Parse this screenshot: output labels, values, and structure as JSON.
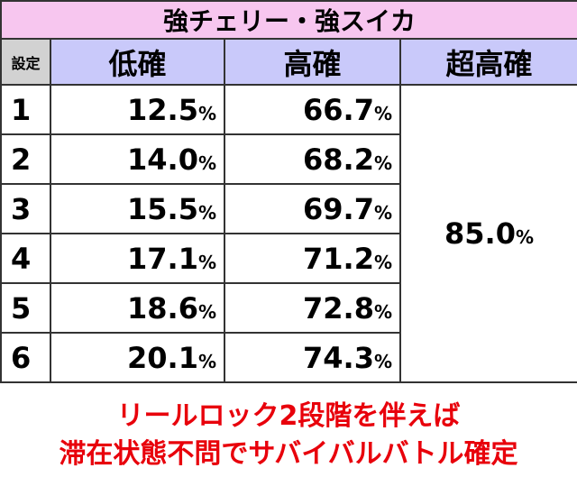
{
  "title": "強チェリー・強スイカ",
  "table": {
    "header": [
      "設定",
      "低確",
      "高確",
      "超高確"
    ],
    "rows": [
      [
        "1",
        {
          "value": "12.5",
          "unit": "%"
        },
        {
          "value": "66.7",
          "unit": "%"
        }
      ],
      [
        "2",
        {
          "value": "14.0",
          "unit": "%"
        },
        {
          "value": "68.2",
          "unit": "%"
        }
      ],
      [
        "3",
        {
          "value": "15.5",
          "unit": "%"
        },
        {
          "value": "69.7",
          "unit": "%"
        }
      ],
      [
        "4",
        {
          "value": "17.1",
          "unit": "%"
        },
        {
          "value": "71.2",
          "unit": "%"
        }
      ],
      [
        "5",
        {
          "value": "18.6",
          "unit": "%"
        },
        {
          "value": "72.8",
          "unit": "%"
        }
      ],
      [
        "6",
        {
          "value": "20.1",
          "unit": "%"
        },
        {
          "value": "74.3",
          "unit": "%"
        }
      ]
    ],
    "super": {
      "value": "85.0",
      "unit": "%"
    }
  },
  "footer": [
    "リールロック2段階を伴えば",
    "滞在状態不問でサバイバルバトル確定"
  ]
}
